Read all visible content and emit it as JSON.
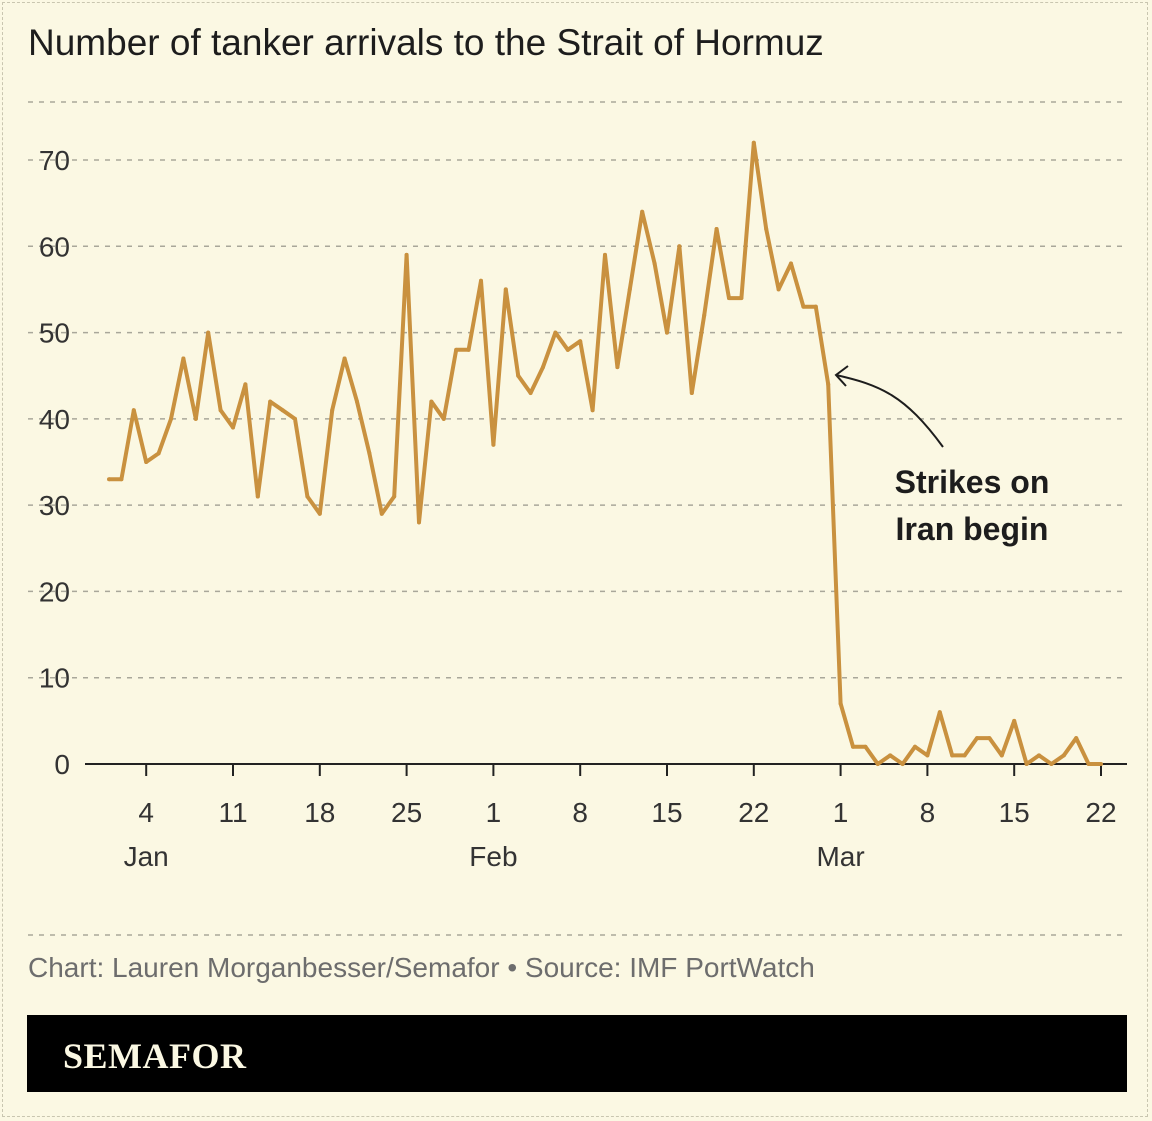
{
  "title": "Number of tanker arrivals to the Strait of Hormuz",
  "source": "Chart: Lauren Morganbesser/Semafor • Source: IMF PortWatch",
  "brand": "SEMAFOR",
  "colors": {
    "line": "#c9913f",
    "background": "#fbf8e3",
    "grid": "#a9a79a",
    "annotation": "#1d1d1d"
  },
  "chart_data": {
    "type": "line",
    "title": "Number of tanker arrivals to the Strait of Hormuz",
    "xlabel": "",
    "ylabel": "",
    "ylim": [
      0,
      70
    ],
    "grid": true,
    "y_ticks": [
      0,
      10,
      20,
      30,
      40,
      50,
      60,
      70
    ],
    "x_ticks": [
      {
        "date": "Jan 4",
        "label": "4",
        "month": "Jan"
      },
      {
        "date": "Jan 11",
        "label": "11",
        "month": ""
      },
      {
        "date": "Jan 18",
        "label": "18",
        "month": ""
      },
      {
        "date": "Jan 25",
        "label": "25",
        "month": ""
      },
      {
        "date": "Feb 1",
        "label": "1",
        "month": "Feb"
      },
      {
        "date": "Feb 8",
        "label": "8",
        "month": ""
      },
      {
        "date": "Feb 15",
        "label": "15",
        "month": ""
      },
      {
        "date": "Feb 22",
        "label": "22",
        "month": ""
      },
      {
        "date": "Mar 1",
        "label": "1",
        "month": "Mar"
      },
      {
        "date": "Mar 8",
        "label": "8",
        "month": ""
      },
      {
        "date": "Mar 15",
        "label": "15",
        "month": ""
      },
      {
        "date": "Mar 22",
        "label": "22",
        "month": ""
      }
    ],
    "x_start": "Jan 1",
    "x_end": "Mar 22",
    "values": [
      33,
      33,
      41,
      35,
      36,
      40,
      47,
      40,
      50,
      41,
      39,
      44,
      31,
      42,
      41,
      40,
      31,
      29,
      41,
      47,
      42,
      36,
      29,
      31,
      59,
      28,
      42,
      40,
      48,
      48,
      56,
      37,
      55,
      45,
      43,
      46,
      50,
      48,
      49,
      41,
      59,
      46,
      55,
      64,
      58,
      50,
      60,
      43,
      52,
      62,
      54,
      54,
      72,
      62,
      55,
      58,
      53,
      53,
      44,
      7,
      2,
      2,
      0,
      1,
      0,
      2,
      1,
      6,
      1,
      1,
      3,
      3,
      1,
      5,
      0,
      1,
      0,
      1,
      3,
      0,
      0
    ],
    "annotation": {
      "lines": [
        "Strikes on",
        "Iran begin"
      ],
      "points_to_date": "Feb 28",
      "points_to_value": 44
    }
  }
}
